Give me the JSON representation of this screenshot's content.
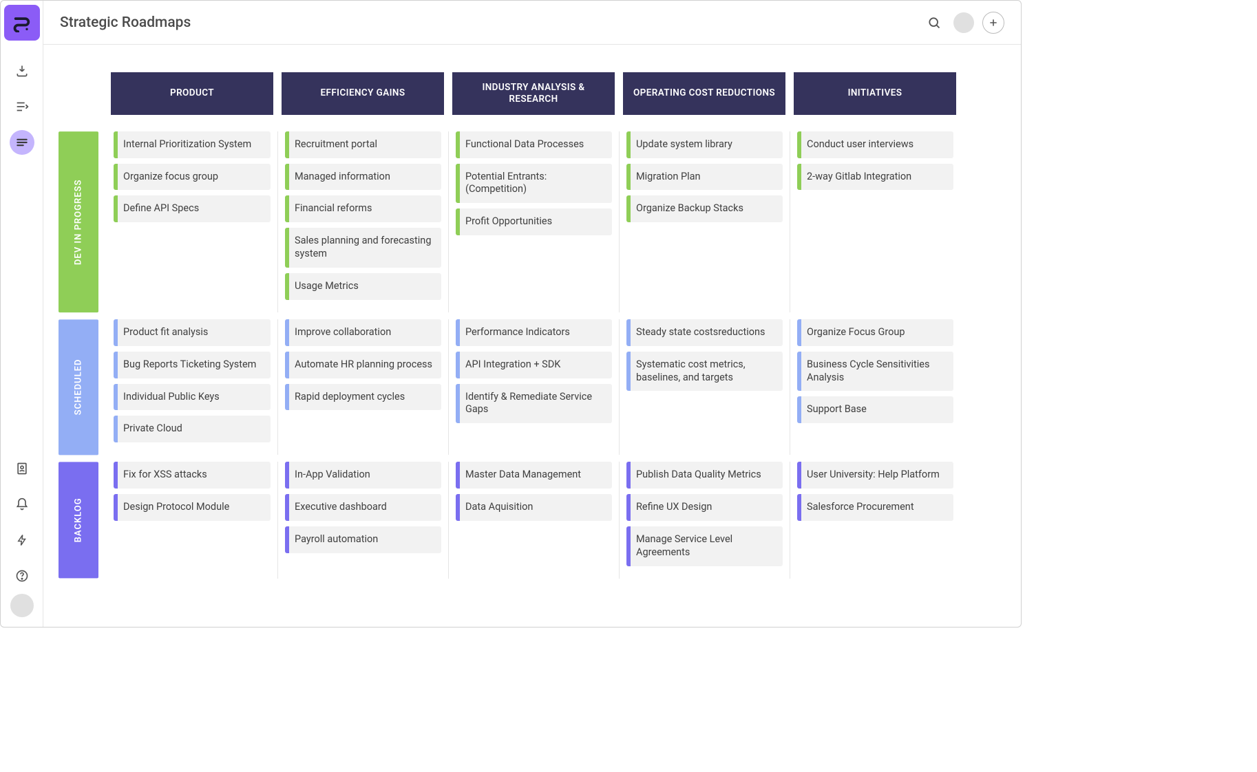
{
  "header": {
    "title": "Strategic Roadmaps"
  },
  "colors": {
    "column_header_bg": "#35335c",
    "column_header_text": "#ffffff",
    "card_bg": "#f2f2f2",
    "logo_bg": "#8b5cf6",
    "nav_active_bg": "#c4b5fd",
    "border": "#e5e5e5"
  },
  "columns": [
    {
      "id": "product",
      "label": "PRODUCT"
    },
    {
      "id": "efficiency",
      "label": "EFFICIENCY GAINS"
    },
    {
      "id": "industry",
      "label": "INDUSTRY ANALYSIS & RESEARCH"
    },
    {
      "id": "cost",
      "label": "OPERATING COST REDUCTIONS"
    },
    {
      "id": "initiatives",
      "label": "INITIATIVES"
    }
  ],
  "lanes": [
    {
      "id": "dev",
      "label": "DEV IN PROGRESS",
      "color": "#8fce57",
      "text_color": "#ffffff"
    },
    {
      "id": "scheduled",
      "label": "SCHEDULED",
      "color": "#93aef5",
      "text_color": "#ffffff"
    },
    {
      "id": "backlog",
      "label": "BACKLOG",
      "color": "#7a6ef0",
      "text_color": "#ffffff"
    }
  ],
  "cards": {
    "dev": {
      "product": [
        "Internal Prioritization System",
        "Organize focus group",
        "Define API Specs"
      ],
      "efficiency": [
        "Recruitment portal",
        "Managed information",
        "Financial reforms",
        "Sales planning and forecasting system",
        "Usage Metrics"
      ],
      "industry": [
        "Functional Data Processes",
        "Potential Entrants: (Competition)",
        "Profit Opportunities"
      ],
      "cost": [
        "Update system library",
        "Migration Plan",
        "Organize Backup Stacks"
      ],
      "initiatives": [
        "Conduct user interviews",
        "2-way Gitlab Integration"
      ]
    },
    "scheduled": {
      "product": [
        "Product fit analysis",
        "Bug Reports Ticketing System",
        "Individual Public Keys",
        "Private Cloud"
      ],
      "efficiency": [
        "Improve collaboration",
        "Automate HR planning process",
        "Rapid deployment cycles"
      ],
      "industry": [
        "Performance Indicators",
        "API Integration + SDK",
        "Identify & Remediate Service Gaps"
      ],
      "cost": [
        "Steady state costsreductions",
        "Systematic cost metrics, baselines, and targets"
      ],
      "initiatives": [
        "Organize Focus Group",
        "Business Cycle Sensitivities Analysis",
        "Support Base"
      ]
    },
    "backlog": {
      "product": [
        "Fix for XSS attacks",
        "Design Protocol Module"
      ],
      "efficiency": [
        "In-App Validation",
        "Executive dashboard",
        "Payroll automation"
      ],
      "industry": [
        "Master Data Management",
        "Data Aquisition"
      ],
      "cost": [
        "Publish Data Quality Metrics",
        "Refine UX Design",
        "Manage Service Level Agreements"
      ],
      "initiatives": [
        "User University: Help Platform",
        "Salesforce Procurement"
      ]
    }
  }
}
